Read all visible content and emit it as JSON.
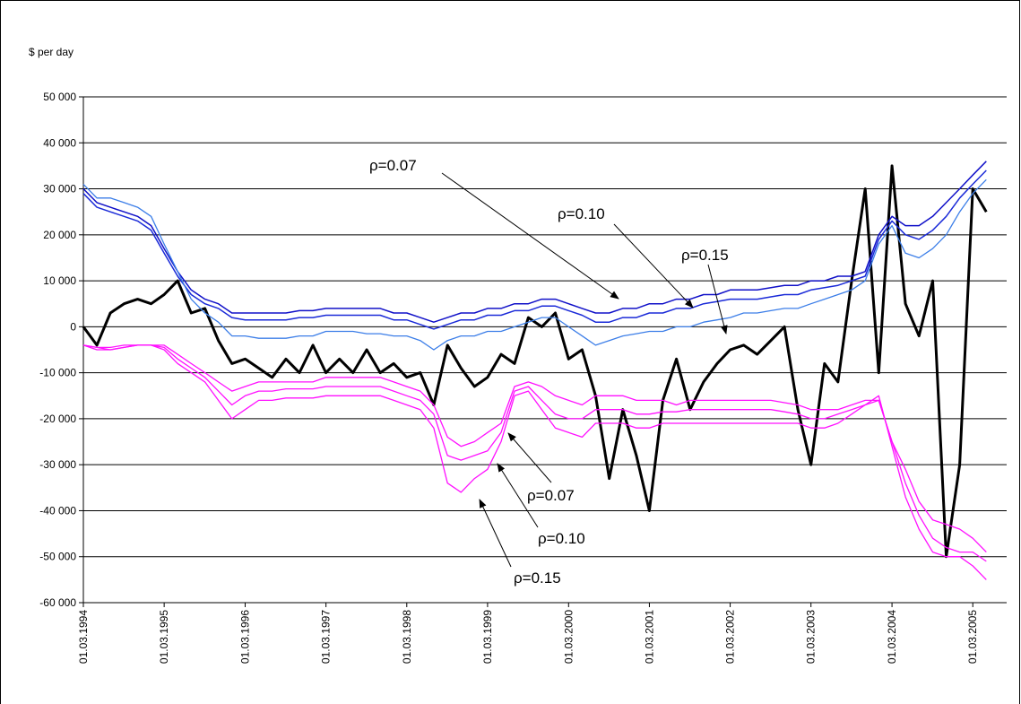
{
  "chart_data": {
    "type": "line",
    "ylabel": "$ per day",
    "x": [
      "1994-03-01",
      "1994-05-01",
      "1994-07-01",
      "1994-09-01",
      "1994-11-01",
      "1995-01-01",
      "1995-03-01",
      "1995-05-01",
      "1995-07-01",
      "1995-09-01",
      "1995-11-01",
      "1996-01-01",
      "1996-03-01",
      "1996-05-01",
      "1996-07-01",
      "1996-09-01",
      "1996-11-01",
      "1997-01-01",
      "1997-03-01",
      "1997-05-01",
      "1997-07-01",
      "1997-09-01",
      "1997-11-01",
      "1998-01-01",
      "1998-03-01",
      "1998-05-01",
      "1998-07-01",
      "1998-09-01",
      "1998-11-01",
      "1999-01-01",
      "1999-03-01",
      "1999-05-01",
      "1999-07-01",
      "1999-09-01",
      "1999-11-01",
      "2000-01-01",
      "2000-03-01",
      "2000-05-01",
      "2000-07-01",
      "2000-09-01",
      "2000-11-01",
      "2001-01-01",
      "2001-03-01",
      "2001-05-01",
      "2001-07-01",
      "2001-09-01",
      "2001-11-01",
      "2002-01-01",
      "2002-03-01",
      "2002-05-01",
      "2002-07-01",
      "2002-09-01",
      "2002-11-01",
      "2003-01-01",
      "2003-03-01",
      "2003-05-01",
      "2003-07-01",
      "2003-09-01",
      "2003-11-01",
      "2004-01-01",
      "2004-03-01",
      "2004-05-01",
      "2004-07-01",
      "2004-09-01",
      "2004-11-01",
      "2005-01-01",
      "2005-03-01",
      "2005-05-01"
    ],
    "series": [
      {
        "color": "#000000",
        "width": 3,
        "values": [
          0,
          -4000,
          3000,
          5000,
          6000,
          5000,
          7000,
          10000,
          3000,
          4000,
          -3000,
          -8000,
          -7000,
          -9000,
          -11000,
          -7000,
          -10000,
          -4000,
          -10000,
          -7000,
          -10000,
          -5000,
          -10000,
          -8000,
          -11000,
          -10000,
          -17000,
          -4000,
          -9000,
          -13000,
          -11000,
          -6000,
          -8000,
          2000,
          0,
          3000,
          -7000,
          -5000,
          -15000,
          -33000,
          -18000,
          -28000,
          -40000,
          -16000,
          -7000,
          -18000,
          -12000,
          -8000,
          -5000,
          -4000,
          -6000,
          -3000,
          0,
          -18000,
          -30000,
          -8000,
          -12000,
          10000,
          30000,
          -10000,
          35000,
          5000,
          -2000,
          10000,
          -50000,
          -30000,
          30000,
          25000
        ]
      },
      {
        "color": "#1010c8",
        "width": 1.5,
        "values": [
          30000,
          27000,
          26000,
          25000,
          24000,
          22000,
          17000,
          12000,
          8000,
          6000,
          5000,
          3000,
          3000,
          3000,
          3000,
          3000,
          3500,
          3500,
          4000,
          4000,
          4000,
          4000,
          4000,
          3000,
          3000,
          2000,
          1000,
          2000,
          3000,
          3000,
          4000,
          4000,
          5000,
          5000,
          6000,
          6000,
          5000,
          4000,
          3000,
          3000,
          4000,
          4000,
          5000,
          5000,
          6000,
          6000,
          7000,
          7000,
          8000,
          8000,
          8000,
          8500,
          9000,
          9000,
          10000,
          10000,
          11000,
          11000,
          12000,
          20000,
          24000,
          22000,
          22000,
          24000,
          27000,
          30000,
          33000,
          36000
        ]
      },
      {
        "color": "#1a2ad8",
        "width": 1.5,
        "values": [
          29000,
          26000,
          25000,
          24000,
          23000,
          21000,
          16000,
          11000,
          7000,
          5000,
          4000,
          2000,
          1500,
          1500,
          1500,
          1500,
          2000,
          2000,
          2500,
          2500,
          2500,
          2500,
          2500,
          1500,
          1500,
          500,
          -500,
          500,
          1500,
          1500,
          2500,
          2500,
          3500,
          3500,
          4500,
          4500,
          3500,
          2500,
          1000,
          1000,
          2000,
          2000,
          3000,
          3000,
          4000,
          4000,
          5000,
          5500,
          6000,
          6000,
          6000,
          6500,
          7000,
          7000,
          8000,
          8500,
          9000,
          10000,
          11000,
          19000,
          23000,
          20000,
          19000,
          21000,
          24000,
          28000,
          31000,
          34000
        ]
      },
      {
        "color": "#3c7ee8",
        "width": 1.3,
        "values": [
          31000,
          28000,
          28000,
          27000,
          26000,
          24000,
          18000,
          12000,
          6000,
          3000,
          1000,
          -2000,
          -2000,
          -2500,
          -2500,
          -2500,
          -2000,
          -2000,
          -1000,
          -1000,
          -1000,
          -1500,
          -1500,
          -2000,
          -2000,
          -3000,
          -5000,
          -3000,
          -2000,
          -2000,
          -1000,
          -1000,
          0,
          1000,
          2000,
          2000,
          0,
          -2000,
          -4000,
          -3000,
          -2000,
          -1500,
          -1000,
          -1000,
          0,
          0,
          1000,
          1500,
          2000,
          3000,
          3000,
          3500,
          4000,
          4000,
          5000,
          6000,
          7000,
          8000,
          10000,
          18000,
          22000,
          16000,
          15000,
          17000,
          20000,
          25000,
          29000,
          32000
        ]
      },
      {
        "color": "#ff10ff",
        "width": 1.3,
        "values": [
          -4000,
          -4500,
          -4500,
          -4000,
          -4000,
          -4000,
          -4000,
          -6000,
          -8000,
          -10000,
          -12000,
          -14000,
          -13000,
          -12000,
          -12000,
          -12000,
          -12000,
          -12000,
          -11000,
          -11000,
          -11000,
          -11000,
          -11000,
          -12000,
          -13000,
          -14000,
          -17000,
          -24000,
          -26000,
          -25000,
          -23000,
          -21000,
          -13000,
          -12000,
          -13000,
          -15000,
          -16000,
          -17000,
          -15000,
          -15000,
          -15000,
          -16000,
          -16000,
          -16000,
          -17000,
          -16000,
          -16000,
          -16000,
          -16000,
          -16000,
          -16000,
          -16000,
          -16500,
          -17000,
          -18000,
          -18000,
          -18000,
          -17000,
          -16000,
          -16000,
          -25000,
          -31000,
          -38000,
          -42000,
          -43000,
          -44000,
          -46000,
          -49000
        ]
      },
      {
        "color": "#ff10ff",
        "width": 1.3,
        "values": [
          -4000,
          -4500,
          -5000,
          -4500,
          -4000,
          -4000,
          -4500,
          -7000,
          -9000,
          -11000,
          -14000,
          -17000,
          -15000,
          -14000,
          -14000,
          -13500,
          -13500,
          -13500,
          -13000,
          -13000,
          -13000,
          -13000,
          -13000,
          -14000,
          -15000,
          -16000,
          -19000,
          -28000,
          -29000,
          -28000,
          -27000,
          -23000,
          -14000,
          -13000,
          -16000,
          -19000,
          -20000,
          -20000,
          -18000,
          -18000,
          -18000,
          -19000,
          -19000,
          -18500,
          -18500,
          -18000,
          -18000,
          -18000,
          -18000,
          -18000,
          -18000,
          -18000,
          -18500,
          -19000,
          -20000,
          -20000,
          -19000,
          -18000,
          -17000,
          -16000,
          -25000,
          -34000,
          -41000,
          -46000,
          -48000,
          -49000,
          -49000,
          -51000
        ]
      },
      {
        "color": "#ff10ff",
        "width": 1.3,
        "values": [
          -4000,
          -5000,
          -5000,
          -4500,
          -4000,
          -4000,
          -5000,
          -8000,
          -10000,
          -12000,
          -16000,
          -20000,
          -18000,
          -16000,
          -16000,
          -15500,
          -15500,
          -15500,
          -15000,
          -15000,
          -15000,
          -15000,
          -15000,
          -16000,
          -17000,
          -18000,
          -22000,
          -34000,
          -36000,
          -33000,
          -31000,
          -25000,
          -15000,
          -14000,
          -18000,
          -22000,
          -23000,
          -24000,
          -21000,
          -21000,
          -21000,
          -22000,
          -22000,
          -21000,
          -21000,
          -21000,
          -21000,
          -21000,
          -21000,
          -21000,
          -21000,
          -21000,
          -21000,
          -21000,
          -22000,
          -22000,
          -21000,
          -19000,
          -17000,
          -15000,
          -26000,
          -37000,
          -44000,
          -49000,
          -50000,
          -50000,
          -52000,
          -55000
        ]
      }
    ],
    "xlim": [
      "1994-03-01",
      "2005-08-01"
    ],
    "xticks": [
      {
        "value": "1994-03-01",
        "label": "01.03.1994"
      },
      {
        "value": "1995-03-01",
        "label": "01.03.1995"
      },
      {
        "value": "1996-03-01",
        "label": "01.03.1996"
      },
      {
        "value": "1997-03-01",
        "label": "01.03.1997"
      },
      {
        "value": "1998-03-01",
        "label": "01.03.1998"
      },
      {
        "value": "1999-03-01",
        "label": "01.03.1999"
      },
      {
        "value": "2000-03-01",
        "label": "01.03.2000"
      },
      {
        "value": "2001-03-01",
        "label": "01.03.2001"
      },
      {
        "value": "2002-03-01",
        "label": "01.03.2002"
      },
      {
        "value": "2003-03-01",
        "label": "01.03.2003"
      },
      {
        "value": "2004-03-01",
        "label": "01.03.2004"
      },
      {
        "value": "2005-03-01",
        "label": "01.03.2005"
      }
    ],
    "ylim": [
      -60000,
      50000
    ],
    "yticks": [
      {
        "value": -60000,
        "label": "-60 000"
      },
      {
        "value": -50000,
        "label": "-50 000"
      },
      {
        "value": -40000,
        "label": "-40 000"
      },
      {
        "value": -30000,
        "label": "-30 000"
      },
      {
        "value": -20000,
        "label": "-20 000"
      },
      {
        "value": -10000,
        "label": "-10 000"
      },
      0,
      {
        "value": 10000,
        "label": "10 000"
      },
      {
        "value": 20000,
        "label": "20 000"
      },
      {
        "value": 30000,
        "label": "30 000"
      },
      {
        "value": 40000,
        "label": "40 000"
      },
      {
        "value": 50000,
        "label": "50 000"
      }
    ],
    "grid": true,
    "annotations": [
      "ρ=0.07",
      "ρ=0.10",
      "ρ=0.15",
      "ρ=0.07",
      "ρ=0.10",
      "ρ=0.15"
    ]
  }
}
